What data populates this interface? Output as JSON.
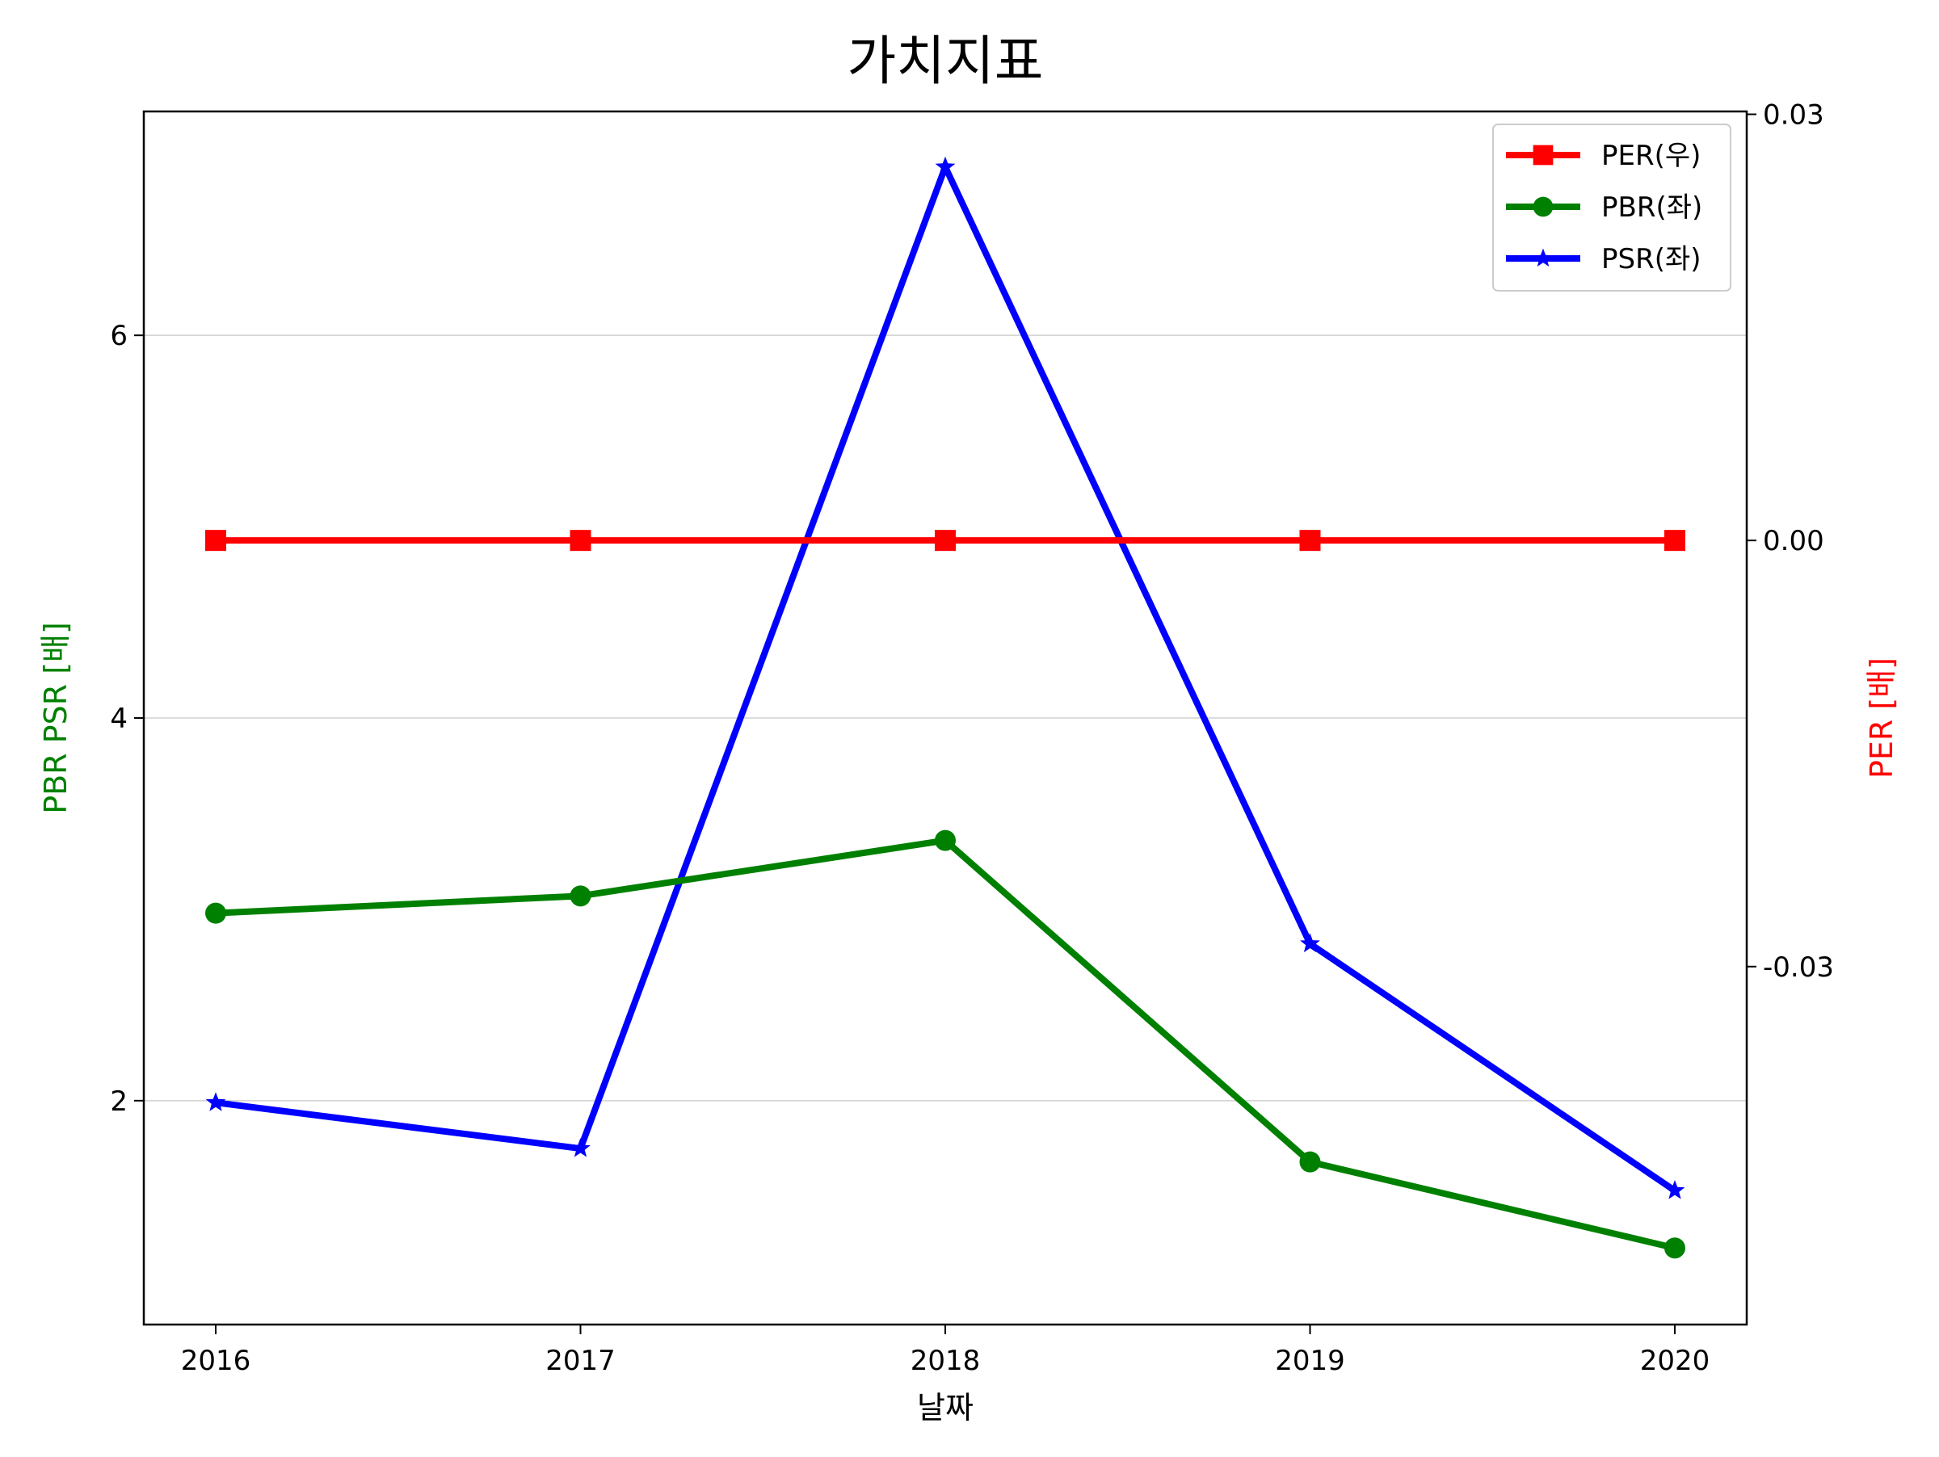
{
  "chart_data": {
    "type": "line",
    "title": "가치지표",
    "xlabel": "날짜",
    "ylabel_left": "PBR PSR [배]",
    "ylabel_right": "PER [배]",
    "categories": [
      "2016",
      "2017",
      "2018",
      "2019",
      "2020"
    ],
    "y_left": {
      "ticks": [
        "2",
        "4",
        "6"
      ],
      "tick_values": [
        2,
        4,
        6
      ],
      "lim": [
        0.83,
        7.17
      ],
      "grid": true
    },
    "y_right": {
      "ticks": [
        "0.03",
        "0.00",
        "-0.03"
      ],
      "tick_values": [
        0.03,
        0.0,
        -0.03
      ],
      "lim": [
        -0.0552,
        0.0302
      ]
    },
    "legend_position": "top-right",
    "series": [
      {
        "name": "PER(우)",
        "axis": "right",
        "marker": "square",
        "color": "#ff0000",
        "values": [
          0,
          0,
          0,
          0,
          0
        ]
      },
      {
        "name": "PBR(좌)",
        "axis": "left",
        "marker": "circle",
        "color": "#008000",
        "values": [
          2.98,
          3.07,
          3.36,
          1.68,
          1.23
        ]
      },
      {
        "name": "PSR(좌)",
        "axis": "left",
        "marker": "star",
        "color": "#0000ff",
        "values": [
          1.99,
          1.75,
          6.88,
          2.82,
          1.53
        ]
      }
    ]
  }
}
